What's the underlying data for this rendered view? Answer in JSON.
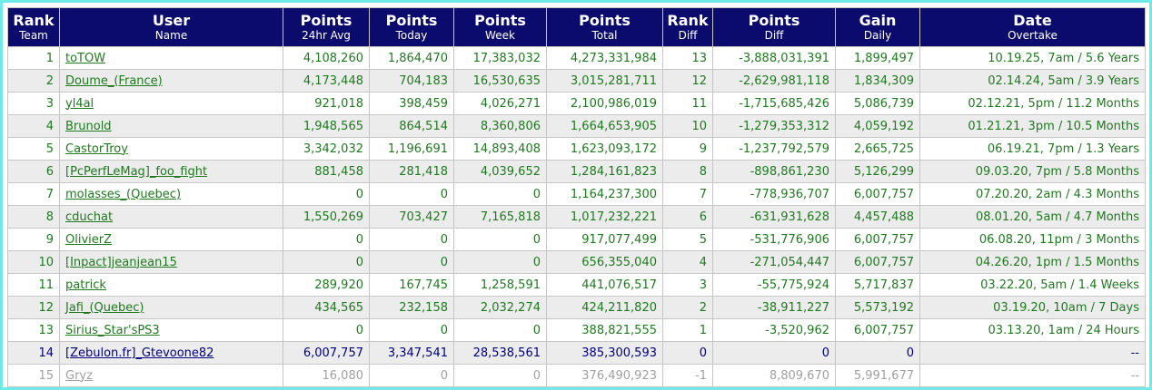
{
  "colors": {
    "frame_border": "#70e9e9",
    "header_bg": "#0b0b6d",
    "header_text": "#ffffff",
    "data_text_green": "#1f7a1f",
    "self_row_text": "#000080",
    "inactive_row_text": "#a0a0a0",
    "alt_row_bg": "#ececec",
    "cell_border": "#c6c6c6"
  },
  "table": {
    "columns": [
      {
        "key": "rank",
        "title": "Rank",
        "subtitle": "Team"
      },
      {
        "key": "user",
        "title": "User",
        "subtitle": "Name"
      },
      {
        "key": "p24",
        "title": "Points",
        "subtitle": "24hr Avg"
      },
      {
        "key": "today",
        "title": "Points",
        "subtitle": "Today"
      },
      {
        "key": "week",
        "title": "Points",
        "subtitle": "Week"
      },
      {
        "key": "total",
        "title": "Points",
        "subtitle": "Total"
      },
      {
        "key": "rank_diff",
        "title": "Rank",
        "subtitle": "Diff"
      },
      {
        "key": "points_diff",
        "title": "Points",
        "subtitle": "Diff"
      },
      {
        "key": "gain",
        "title": "Gain",
        "subtitle": "Daily"
      },
      {
        "key": "overtake",
        "title": "Date",
        "subtitle": "Overtake"
      }
    ],
    "rows": [
      {
        "rank": "1",
        "user": "toTOW",
        "p24": "4,108,260",
        "today": "1,864,470",
        "week": "17,383,032",
        "total": "4,273,331,984",
        "rank_diff": "13",
        "points_diff": "-3,888,031,391",
        "gain": "1,899,497",
        "overtake": "10.19.25, 7am / 5.6 Years",
        "style": "normal"
      },
      {
        "rank": "2",
        "user": "Doume_(France)",
        "p24": "4,173,448",
        "today": "704,183",
        "week": "16,530,635",
        "total": "3,015,281,711",
        "rank_diff": "12",
        "points_diff": "-2,629,981,118",
        "gain": "1,834,309",
        "overtake": "02.14.24, 5am / 3.9 Years",
        "style": "normal"
      },
      {
        "rank": "3",
        "user": "yl4al",
        "p24": "921,018",
        "today": "398,459",
        "week": "4,026,271",
        "total": "2,100,986,019",
        "rank_diff": "11",
        "points_diff": "-1,715,685,426",
        "gain": "5,086,739",
        "overtake": "02.12.21, 5pm / 11.2 Months",
        "style": "normal"
      },
      {
        "rank": "4",
        "user": "Brunold",
        "p24": "1,948,565",
        "today": "864,514",
        "week": "8,360,806",
        "total": "1,664,653,905",
        "rank_diff": "10",
        "points_diff": "-1,279,353,312",
        "gain": "4,059,192",
        "overtake": "01.21.21, 3pm / 10.5 Months",
        "style": "normal"
      },
      {
        "rank": "5",
        "user": "CastorTroy",
        "p24": "3,342,032",
        "today": "1,196,691",
        "week": "14,893,408",
        "total": "1,623,093,172",
        "rank_diff": "9",
        "points_diff": "-1,237,792,579",
        "gain": "2,665,725",
        "overtake": "06.19.21, 7pm / 1.3 Years",
        "style": "normal"
      },
      {
        "rank": "6",
        "user": "[PcPerfLeMag]_foo_fight",
        "p24": "881,458",
        "today": "281,418",
        "week": "4,039,652",
        "total": "1,284,161,823",
        "rank_diff": "8",
        "points_diff": "-898,861,230",
        "gain": "5,126,299",
        "overtake": "09.03.20, 7pm / 5.8 Months",
        "style": "normal"
      },
      {
        "rank": "7",
        "user": "molasses_(Quebec)",
        "p24": "0",
        "today": "0",
        "week": "0",
        "total": "1,164,237,300",
        "rank_diff": "7",
        "points_diff": "-778,936,707",
        "gain": "6,007,757",
        "overtake": "07.20.20, 2am / 4.3 Months",
        "style": "normal"
      },
      {
        "rank": "8",
        "user": "cduchat",
        "p24": "1,550,269",
        "today": "703,427",
        "week": "7,165,818",
        "total": "1,017,232,221",
        "rank_diff": "6",
        "points_diff": "-631,931,628",
        "gain": "4,457,488",
        "overtake": "08.01.20, 5am / 4.7 Months",
        "style": "normal"
      },
      {
        "rank": "9",
        "user": "OlivierZ",
        "p24": "0",
        "today": "0",
        "week": "0",
        "total": "917,077,499",
        "rank_diff": "5",
        "points_diff": "-531,776,906",
        "gain": "6,007,757",
        "overtake": "06.08.20, 11pm / 3 Months",
        "style": "normal"
      },
      {
        "rank": "10",
        "user": "[Inpact]jeanjean15",
        "p24": "0",
        "today": "0",
        "week": "0",
        "total": "656,355,040",
        "rank_diff": "4",
        "points_diff": "-271,054,447",
        "gain": "6,007,757",
        "overtake": "04.26.20, 1pm / 1.5 Months",
        "style": "normal"
      },
      {
        "rank": "11",
        "user": "patrick",
        "p24": "289,920",
        "today": "167,745",
        "week": "1,258,591",
        "total": "441,076,517",
        "rank_diff": "3",
        "points_diff": "-55,775,924",
        "gain": "5,717,837",
        "overtake": "03.22.20, 5am / 1.4 Weeks",
        "style": "normal"
      },
      {
        "rank": "12",
        "user": "Jafi_(Quebec)",
        "p24": "434,565",
        "today": "232,158",
        "week": "2,032,274",
        "total": "424,211,820",
        "rank_diff": "2",
        "points_diff": "-38,911,227",
        "gain": "5,573,192",
        "overtake": "03.19.20, 10am / 7 Days",
        "style": "normal"
      },
      {
        "rank": "13",
        "user": "Sirius_Star'sPS3",
        "p24": "0",
        "today": "0",
        "week": "0",
        "total": "388,821,555",
        "rank_diff": "1",
        "points_diff": "-3,520,962",
        "gain": "6,007,757",
        "overtake": "03.13.20, 1am / 24 Hours",
        "style": "normal"
      },
      {
        "rank": "14",
        "user": "[Zebulon.fr]_Gtevoone82",
        "p24": "6,007,757",
        "today": "3,347,541",
        "week": "28,538,561",
        "total": "385,300,593",
        "rank_diff": "0",
        "points_diff": "0",
        "gain": "0",
        "overtake": "--",
        "style": "self"
      },
      {
        "rank": "15",
        "user": "Gryz",
        "p24": "16,080",
        "today": "0",
        "week": "0",
        "total": "376,490,923",
        "rank_diff": "-1",
        "points_diff": "8,809,670",
        "gain": "5,991,677",
        "overtake": "--",
        "style": "inactive"
      }
    ]
  }
}
